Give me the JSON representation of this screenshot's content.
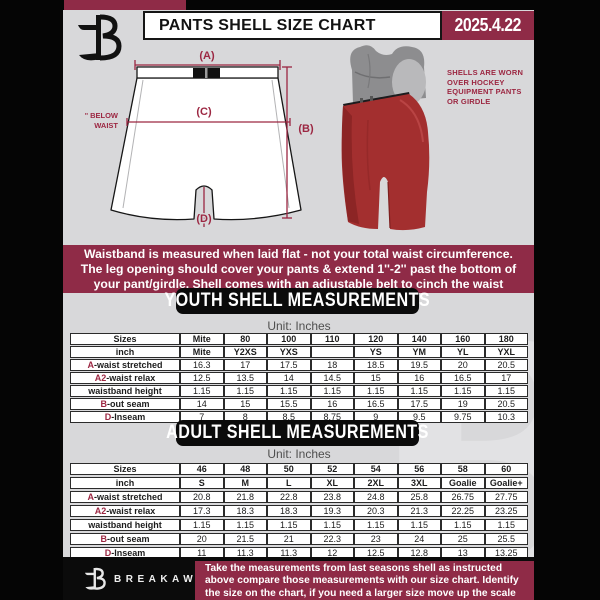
{
  "header": {
    "title": "PANTS SHELL SIZE CHART",
    "date": "2025.4.22"
  },
  "diagram": {
    "label_a": "(A)",
    "label_b": "(B)",
    "label_c": "(C)",
    "label_d": "(D)",
    "waist_note_1": "7'' BELOW",
    "waist_note_2": "WAIST"
  },
  "photo": {
    "note": "SHELLS ARE WORN OVER HOCKEY EQUIPMENT PANTS OR GIRDLE"
  },
  "banner": {
    "text": "Waistband is measured when laid flat - not your total waist circumference. The leg opening should cover your pants & extend 1''-2'' past the bottom of your pant/girdle. Shell comes with an adjustable belt to cinch the waist"
  },
  "youth": {
    "heading": "YOUTH SHELL MEASUREMENTS",
    "unit": "Unit: Inches"
  },
  "adult": {
    "heading": "ADULT SHELL MEASUREMENTS",
    "unit": "Unit: Inches"
  },
  "youth_table": {
    "rows": [
      {
        "header": true,
        "prefix": "",
        "label": "Sizes",
        "values": [
          "Mite",
          "80",
          "100",
          "110",
          "120",
          "140",
          "160",
          "180"
        ]
      },
      {
        "header": true,
        "prefix": "",
        "label": "inch",
        "values": [
          "Mite",
          "Y2XS",
          "YXS",
          "",
          "YS",
          "YM",
          "YL",
          "YXL"
        ]
      },
      {
        "header": false,
        "prefix": "A",
        "label": "-waist stretched",
        "values": [
          "16.3",
          "17",
          "17.5",
          "18",
          "18.5",
          "19.5",
          "20",
          "20.5"
        ]
      },
      {
        "header": false,
        "prefix": "A2",
        "label": "-waist relax",
        "values": [
          "12.5",
          "13.5",
          "14",
          "14.5",
          "15",
          "16",
          "16.5",
          "17"
        ]
      },
      {
        "header": false,
        "prefix": "",
        "label": "waistband height",
        "values": [
          "1.15",
          "1.15",
          "1.15",
          "1.15",
          "1.15",
          "1.15",
          "1.15",
          "1.15"
        ]
      },
      {
        "header": false,
        "prefix": "B",
        "label": "-out seam",
        "values": [
          "14",
          "15",
          "15.5",
          "16",
          "16.5",
          "17.5",
          "19",
          "20.5"
        ]
      },
      {
        "header": false,
        "prefix": "D",
        "label": "-Inseam",
        "values": [
          "7",
          "8",
          "8.5",
          "8.75",
          "9",
          "9.5",
          "9.75",
          "10.3"
        ]
      }
    ]
  },
  "adult_table": {
    "rows": [
      {
        "header": true,
        "prefix": "",
        "label": "Sizes",
        "values": [
          "46",
          "48",
          "50",
          "52",
          "54",
          "56",
          "58",
          "60"
        ]
      },
      {
        "header": true,
        "prefix": "",
        "label": "inch",
        "values": [
          "S",
          "M",
          "L",
          "XL",
          "2XL",
          "3XL",
          "Goalie",
          "Goalie+"
        ]
      },
      {
        "header": false,
        "prefix": "A",
        "label": "-waist stretched",
        "values": [
          "20.8",
          "21.8",
          "22.8",
          "23.8",
          "24.8",
          "25.8",
          "26.75",
          "27.75"
        ]
      },
      {
        "header": false,
        "prefix": "A2",
        "label": "-waist relax",
        "values": [
          "17.3",
          "18.3",
          "18.3",
          "19.3",
          "20.3",
          "21.3",
          "22.25",
          "23.25"
        ]
      },
      {
        "header": false,
        "prefix": "",
        "label": "waistband height",
        "values": [
          "1.15",
          "1.15",
          "1.15",
          "1.15",
          "1.15",
          "1.15",
          "1.15",
          "1.15"
        ]
      },
      {
        "header": false,
        "prefix": "B",
        "label": "-out seam",
        "values": [
          "20",
          "21.5",
          "21",
          "22.3",
          "23",
          "24",
          "25",
          "25.5"
        ]
      },
      {
        "header": false,
        "prefix": "D",
        "label": "-Inseam",
        "values": [
          "11",
          "11.3",
          "11.3",
          "12",
          "12.5",
          "12.8",
          "13",
          "13.25"
        ]
      }
    ]
  },
  "footer": {
    "brand": "BREAKAWAY",
    "note": "Take the measurements from last seasons shell as instructed above compare those measurements with our size chart. Identify the size on the chart, if you need a larger size move up the scale on the chart"
  },
  "colors": {
    "maroon": "#8f2b47",
    "accent": "#9c2742",
    "panel": "#d8d8da",
    "red_shell": "#a32f2f",
    "pad_gray": "#8d8d8f"
  }
}
